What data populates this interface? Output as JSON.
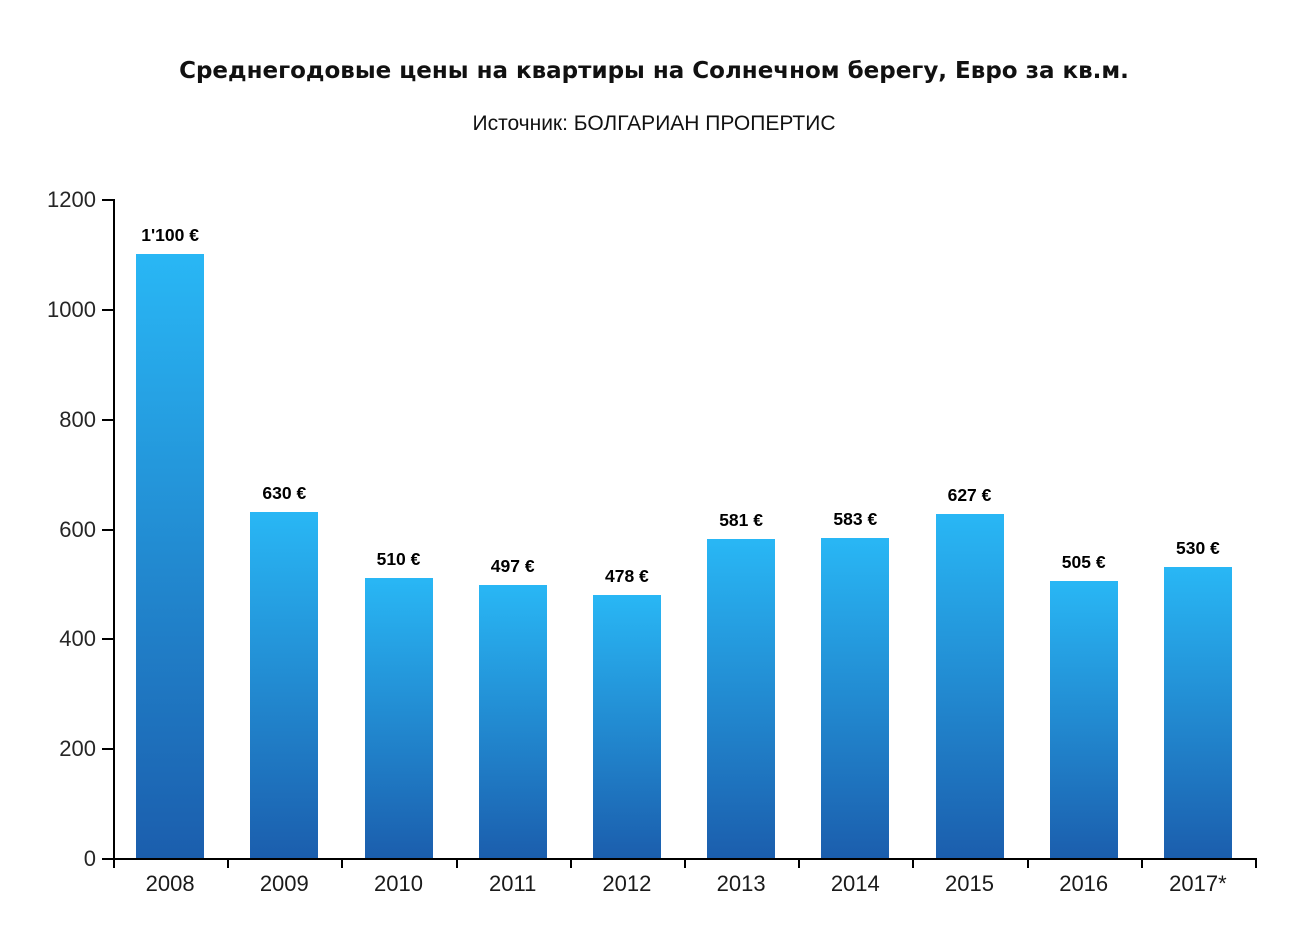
{
  "header": {
    "title": "Среднегодовые цены на квартиры на Солнечном берегу, Евро за кв.м.",
    "subtitle": "Источник: БОЛГАРИАН ПРОПЕРТИС"
  },
  "chart_data": {
    "type": "bar",
    "title": "Среднегодовые цены на квартиры на Солнечном берегу, Евро за кв.м.",
    "subtitle": "Источник: БОЛГАРИАН ПРОПЕРТИС",
    "categories": [
      "2008",
      "2009",
      "2010",
      "2011",
      "2012",
      "2013",
      "2014",
      "2015",
      "2016",
      "2017*"
    ],
    "values": [
      1100,
      630,
      510,
      497,
      478,
      581,
      583,
      627,
      505,
      530
    ],
    "value_labels": [
      "1'100 €",
      "630 €",
      "510 €",
      "497 €",
      "478 €",
      "581 €",
      "583 €",
      "627 €",
      "505 €",
      "530 €"
    ],
    "xlabel": "",
    "ylabel": "",
    "ylim": [
      0,
      1200
    ],
    "yticks": [
      0,
      200,
      400,
      600,
      800,
      1000,
      1200
    ],
    "grid": false,
    "legend_position": "none",
    "colors": {
      "bar_gradient_top": "#29b7f5",
      "bar_gradient_bottom": "#1b5ead",
      "axis": "#000000",
      "text": "#000000"
    }
  }
}
